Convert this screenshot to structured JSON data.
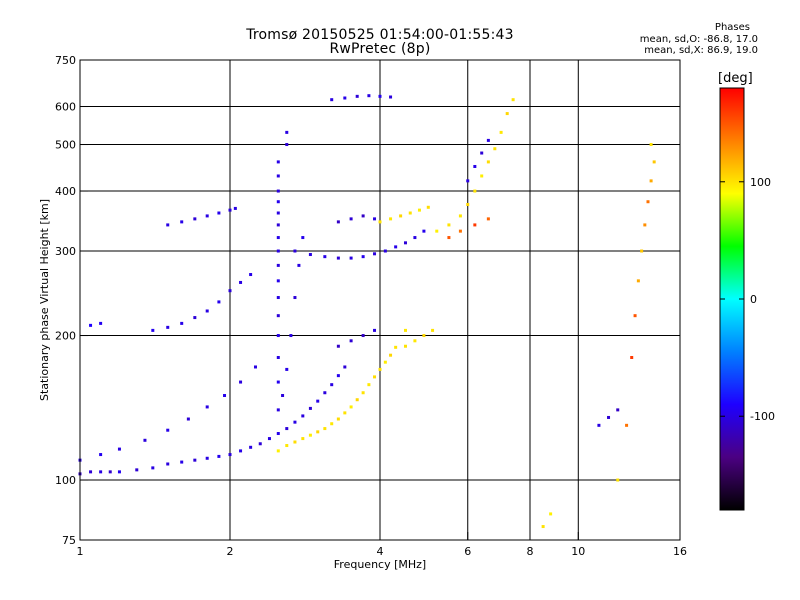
{
  "header": {
    "title_line1": "Tromsø 20150525 01:54:00-01:55:43",
    "title_line2": "RwPretec (8p)"
  },
  "phase_info": {
    "heading": "Phases",
    "line_o": "mean, sd,O: -86.8, 17.0",
    "line_x": "mean, sd,X:  86.9, 19.0"
  },
  "colorbar": {
    "label": "[deg]",
    "min": -180,
    "max": 180,
    "ticks": [
      {
        "value": 100,
        "label": "100"
      },
      {
        "value": 0,
        "label": "0"
      },
      {
        "value": -100,
        "label": "-100"
      }
    ],
    "stops": [
      "#000000",
      "#4b0082",
      "#1e00ff",
      "#0080ff",
      "#00ffff",
      "#00ff00",
      "#ffff00",
      "#ff8000",
      "#ff0000"
    ]
  },
  "chart_data": {
    "type": "scatter",
    "title": "Tromsø 20150525 01:54:00-01:55:43",
    "subtitle": "RwPretec (8p)",
    "xlabel": "Frequency [MHz]",
    "ylabel": "Stationary phase Virtual Height [km]",
    "x_scale": "log",
    "y_scale": "log",
    "xlim": [
      1,
      16
    ],
    "ylim": [
      75,
      750
    ],
    "x_ticks": [
      1,
      2,
      4,
      6,
      8,
      10,
      16
    ],
    "y_ticks": [
      75,
      100,
      200,
      300,
      400,
      500,
      600,
      750
    ],
    "grid": true,
    "color_variable": "phase (deg)",
    "series": [
      {
        "points": [
          [
            1.0,
            103,
            -110
          ],
          [
            1.05,
            104,
            -105
          ],
          [
            1.1,
            104,
            -100
          ],
          [
            1.15,
            104,
            -108
          ],
          [
            1.2,
            104,
            -95
          ],
          [
            1.3,
            105,
            -105
          ],
          [
            1.4,
            106,
            -100
          ],
          [
            1.5,
            108,
            -102
          ],
          [
            1.6,
            109,
            -98
          ],
          [
            1.7,
            110,
            -104
          ],
          [
            1.8,
            111,
            -100
          ],
          [
            1.9,
            112,
            -96
          ],
          [
            2.0,
            113,
            -102
          ],
          [
            2.1,
            115,
            -98
          ],
          [
            2.2,
            117,
            -100
          ],
          [
            2.3,
            119,
            -104
          ],
          [
            2.4,
            122,
            -100
          ],
          [
            2.5,
            125,
            -97
          ],
          [
            2.6,
            128,
            -103
          ],
          [
            2.7,
            132,
            -99
          ],
          [
            2.8,
            136,
            -101
          ],
          [
            2.9,
            141,
            -105
          ],
          [
            3.0,
            146,
            -98
          ],
          [
            3.1,
            152,
            -102
          ],
          [
            3.2,
            158,
            -100
          ],
          [
            3.3,
            165,
            -96
          ],
          [
            3.4,
            172,
            -104
          ]
        ]
      },
      {
        "points": [
          [
            1.0,
            110,
            -100
          ],
          [
            1.1,
            113,
            -95
          ],
          [
            1.2,
            116,
            -100
          ],
          [
            1.35,
            121,
            -102
          ],
          [
            1.5,
            127,
            -98
          ],
          [
            1.65,
            134,
            -104
          ],
          [
            1.8,
            142,
            -100
          ],
          [
            1.95,
            150,
            -97
          ],
          [
            2.1,
            160,
            -102
          ],
          [
            2.25,
            172,
            -100
          ]
        ]
      },
      {
        "points": [
          [
            1.4,
            205,
            -95
          ],
          [
            1.5,
            208,
            -100
          ],
          [
            1.6,
            212,
            -98
          ],
          [
            1.7,
            218,
            -104
          ],
          [
            1.8,
            225,
            -100
          ],
          [
            1.9,
            235,
            -96
          ],
          [
            2.0,
            248,
            -102
          ],
          [
            2.1,
            258,
            -100
          ],
          [
            2.2,
            268,
            -98
          ]
        ]
      },
      {
        "points": [
          [
            1.5,
            340,
            -100
          ],
          [
            1.6,
            345,
            -98
          ],
          [
            1.7,
            350,
            -104
          ],
          [
            1.8,
            355,
            -100
          ],
          [
            1.9,
            360,
            -96
          ],
          [
            2.0,
            365,
            -102
          ],
          [
            2.05,
            368,
            -100
          ]
        ]
      },
      {
        "points": [
          [
            1.05,
            210,
            -90
          ],
          [
            1.1,
            212,
            -95
          ]
        ]
      },
      {
        "points": [
          [
            2.5,
            115,
            95
          ],
          [
            2.6,
            118,
            98
          ],
          [
            2.7,
            120,
            102
          ],
          [
            2.8,
            122,
            100
          ],
          [
            2.9,
            124,
            96
          ],
          [
            3.0,
            126,
            104
          ],
          [
            3.1,
            128,
            100
          ],
          [
            3.2,
            131,
            98
          ],
          [
            3.3,
            134,
            102
          ],
          [
            3.4,
            138,
            100
          ],
          [
            3.5,
            142,
            96
          ],
          [
            3.6,
            147,
            104
          ],
          [
            3.7,
            152,
            100
          ],
          [
            3.8,
            158,
            98
          ],
          [
            3.9,
            164,
            102
          ],
          [
            4.0,
            170,
            100
          ],
          [
            4.1,
            176,
            96
          ],
          [
            4.2,
            182,
            104
          ],
          [
            4.3,
            189,
            100
          ],
          [
            4.5,
            205,
            98
          ]
        ]
      },
      {
        "points": [
          [
            2.5,
            140,
            -100
          ],
          [
            2.5,
            160,
            -95
          ],
          [
            2.5,
            180,
            -100
          ],
          [
            2.5,
            200,
            -98
          ],
          [
            2.5,
            220,
            -104
          ],
          [
            2.5,
            240,
            -100
          ],
          [
            2.5,
            260,
            -96
          ],
          [
            2.5,
            280,
            -102
          ],
          [
            2.5,
            300,
            -100
          ],
          [
            2.5,
            320,
            -98
          ],
          [
            2.5,
            340,
            -104
          ],
          [
            2.5,
            360,
            -100
          ],
          [
            2.5,
            380,
            -96
          ],
          [
            2.5,
            400,
            -102
          ],
          [
            2.5,
            430,
            -100
          ],
          [
            2.5,
            460,
            -98
          ],
          [
            2.6,
            500,
            -104
          ],
          [
            2.6,
            530,
            -100
          ],
          [
            2.55,
            150,
            -102
          ],
          [
            2.6,
            170,
            -98
          ],
          [
            2.65,
            200,
            -100
          ],
          [
            2.7,
            240,
            -104
          ],
          [
            2.75,
            280,
            -100
          ],
          [
            2.8,
            320,
            -96
          ]
        ]
      },
      {
        "points": [
          [
            2.7,
            300,
            -102
          ],
          [
            2.9,
            295,
            -100
          ],
          [
            3.1,
            292,
            -98
          ],
          [
            3.3,
            290,
            -104
          ],
          [
            3.5,
            290,
            -100
          ],
          [
            3.7,
            292,
            -96
          ],
          [
            3.9,
            296,
            -102
          ],
          [
            4.1,
            300,
            -100
          ],
          [
            4.3,
            306,
            -98
          ],
          [
            4.5,
            312,
            -104
          ],
          [
            4.7,
            320,
            -100
          ],
          [
            4.9,
            330,
            -96
          ]
        ]
      },
      {
        "points": [
          [
            3.2,
            620,
            -100
          ],
          [
            3.4,
            625,
            -98
          ],
          [
            3.6,
            630,
            -104
          ],
          [
            3.8,
            632,
            -100
          ],
          [
            4.0,
            630,
            -96
          ],
          [
            4.2,
            628,
            -102
          ]
        ]
      },
      {
        "points": [
          [
            3.3,
            345,
            -110
          ],
          [
            3.5,
            350,
            -105
          ],
          [
            3.7,
            355,
            -110
          ],
          [
            3.9,
            350,
            -100
          ]
        ]
      },
      {
        "points": [
          [
            3.3,
            190,
            -110
          ],
          [
            3.5,
            195,
            -105
          ],
          [
            3.7,
            200,
            -110
          ],
          [
            3.9,
            205,
            -100
          ]
        ]
      },
      {
        "points": [
          [
            4.0,
            345,
            100
          ],
          [
            4.2,
            350,
            98
          ],
          [
            4.4,
            355,
            104
          ],
          [
            4.6,
            360,
            100
          ],
          [
            4.8,
            365,
            96
          ],
          [
            5.0,
            370,
            102
          ]
        ]
      },
      {
        "points": [
          [
            4.5,
            190,
            100
          ],
          [
            4.7,
            195,
            98
          ],
          [
            4.9,
            200,
            104
          ],
          [
            5.1,
            205,
            100
          ]
        ]
      },
      {
        "points": [
          [
            5.2,
            330,
            95
          ],
          [
            5.5,
            340,
            100
          ],
          [
            5.8,
            355,
            98
          ],
          [
            6.0,
            375,
            104
          ],
          [
            6.2,
            400,
            100
          ],
          [
            6.4,
            430,
            96
          ],
          [
            6.6,
            460,
            102
          ],
          [
            6.8,
            490,
            100
          ],
          [
            7.0,
            530,
            98
          ],
          [
            7.2,
            580,
            104
          ],
          [
            7.4,
            620,
            100
          ]
        ]
      },
      {
        "points": [
          [
            5.5,
            320,
            150
          ],
          [
            5.8,
            330,
            140
          ],
          [
            6.2,
            340,
            160
          ],
          [
            6.6,
            350,
            145
          ]
        ]
      },
      {
        "points": [
          [
            6.0,
            420,
            -100
          ],
          [
            6.2,
            450,
            -98
          ],
          [
            6.4,
            480,
            -104
          ],
          [
            6.6,
            510,
            -100
          ]
        ]
      },
      {
        "points": [
          [
            12.0,
            100,
            100
          ],
          [
            12.5,
            130,
            140
          ],
          [
            12.8,
            180,
            160
          ],
          [
            13.0,
            220,
            150
          ],
          [
            13.2,
            260,
            120
          ],
          [
            13.4,
            300,
            110
          ],
          [
            13.6,
            340,
            130
          ],
          [
            13.8,
            380,
            140
          ],
          [
            14.0,
            420,
            120
          ],
          [
            14.2,
            460,
            110
          ],
          [
            14.0,
            500,
            100
          ]
        ]
      },
      {
        "points": [
          [
            11.0,
            130,
            -100
          ],
          [
            11.5,
            135,
            -105
          ],
          [
            12.0,
            140,
            -110
          ]
        ]
      },
      {
        "points": [
          [
            8.5,
            80,
            100
          ],
          [
            8.8,
            85,
            95
          ]
        ]
      }
    ]
  }
}
